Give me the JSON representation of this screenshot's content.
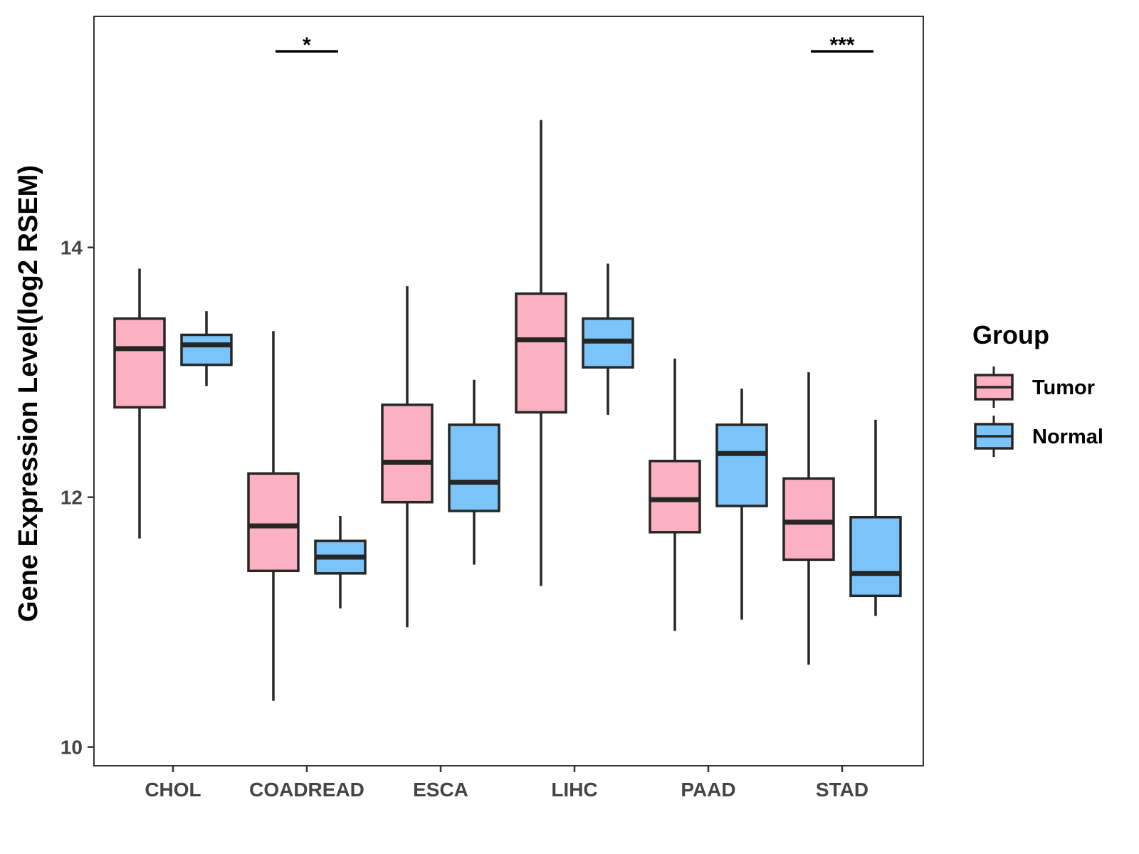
{
  "chart_data": {
    "type": "boxplot",
    "title": "",
    "xlabel": "",
    "ylabel": "Gene Expression Level(log2 RSEM)",
    "ylim": [
      9.85,
      15.85
    ],
    "yticks": [
      10,
      12,
      14
    ],
    "ytick_labels": [
      "10",
      "12",
      "14"
    ],
    "categories": [
      "CHOL",
      "COADREAD",
      "ESCA",
      "LIHC",
      "PAAD",
      "STAD"
    ],
    "grid": false,
    "legend": {
      "title": "Group",
      "position": "right",
      "entries": [
        {
          "name": "Tumor",
          "color": "#FBB1C2"
        },
        {
          "name": "Normal",
          "color": "#7AC4F9"
        }
      ]
    },
    "series": [
      {
        "name": "Tumor",
        "color": "#FBB1C2",
        "boxes": [
          {
            "min": 11.67,
            "q1": 12.72,
            "median": 13.19,
            "q3": 13.43,
            "max": 13.83
          },
          {
            "min": 10.37,
            "q1": 11.41,
            "median": 11.77,
            "q3": 12.19,
            "max": 13.33
          },
          {
            "min": 10.96,
            "q1": 11.96,
            "median": 12.28,
            "q3": 12.74,
            "max": 13.69
          },
          {
            "min": 11.29,
            "q1": 12.68,
            "median": 13.26,
            "q3": 13.63,
            "max": 15.02
          },
          {
            "min": 10.93,
            "q1": 11.72,
            "median": 11.98,
            "q3": 12.29,
            "max": 13.11
          },
          {
            "min": 10.66,
            "q1": 11.5,
            "median": 11.8,
            "q3": 12.15,
            "max": 13.0
          }
        ]
      },
      {
        "name": "Normal",
        "color": "#7AC4F9",
        "boxes": [
          {
            "min": 12.89,
            "q1": 13.06,
            "median": 13.22,
            "q3": 13.3,
            "max": 13.49
          },
          {
            "min": 11.11,
            "q1": 11.39,
            "median": 11.52,
            "q3": 11.65,
            "max": 11.85
          },
          {
            "min": 11.46,
            "q1": 11.89,
            "median": 12.12,
            "q3": 12.58,
            "max": 12.94
          },
          {
            "min": 12.66,
            "q1": 13.04,
            "median": 13.25,
            "q3": 13.43,
            "max": 13.87
          },
          {
            "min": 11.02,
            "q1": 11.93,
            "median": 12.35,
            "q3": 12.58,
            "max": 12.87
          },
          {
            "min": 11.05,
            "q1": 11.21,
            "median": 11.39,
            "q3": 11.84,
            "max": 12.62
          }
        ]
      }
    ],
    "annotations": [
      {
        "category": "COADREAD",
        "label": "*",
        "y": 15.57
      },
      {
        "category": "STAD",
        "label": "***",
        "y": 15.57
      }
    ]
  }
}
